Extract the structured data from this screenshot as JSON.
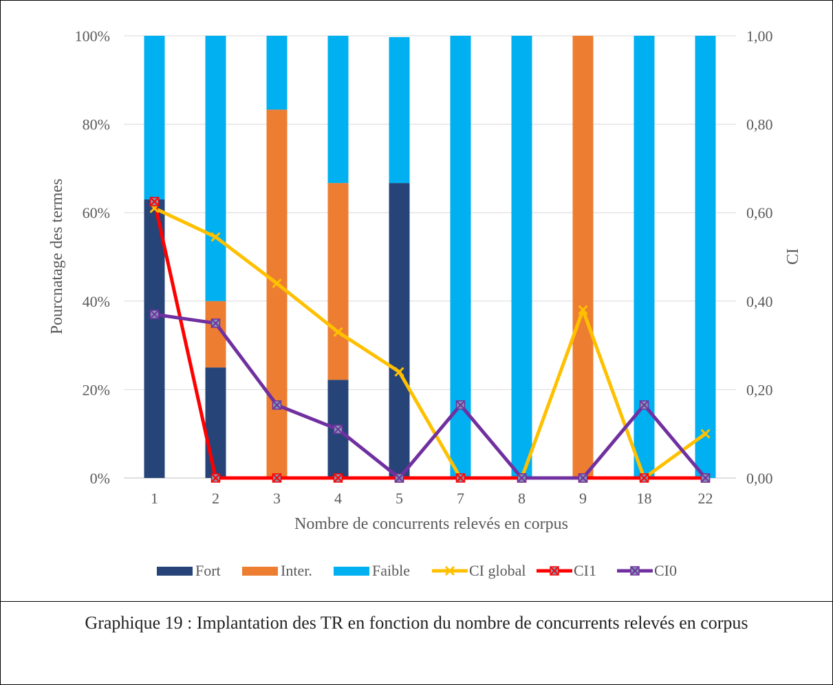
{
  "caption": "Graphique 19 : Implantation des TR en fonction du nombre de concurrents relevés en corpus",
  "chart_data": {
    "type": "bar",
    "stacked": true,
    "categories": [
      "1",
      "2",
      "3",
      "4",
      "5",
      "7",
      "8",
      "9",
      "18",
      "22"
    ],
    "xlabel": "Nombre de concurrents relevés en corpus",
    "ylabel": "Pourcnatage des termes",
    "y2label": "CI",
    "ylim": [
      0,
      100
    ],
    "y2lim": [
      0,
      1
    ],
    "yticks": [
      "0%",
      "20%",
      "40%",
      "60%",
      "80%",
      "100%"
    ],
    "y2ticks": [
      "0,00",
      "0,20",
      "0,40",
      "0,60",
      "0,80",
      "1,00"
    ],
    "grid": true,
    "legend_position": "bottom",
    "series": [
      {
        "name": "Fort",
        "type": "bar",
        "color": "#264478",
        "values": [
          63,
          25,
          0,
          22.2,
          66.7,
          0,
          0,
          0,
          0,
          0
        ]
      },
      {
        "name": "Inter.",
        "type": "bar",
        "color": "#ED7D31",
        "values": [
          0,
          15,
          83.3,
          44.5,
          0,
          0,
          0,
          100,
          0,
          0
        ]
      },
      {
        "name": "Faible",
        "type": "bar",
        "color": "#00B0F0",
        "values": [
          37,
          60,
          16.7,
          33.3,
          33.0,
          100,
          100,
          0,
          100,
          100
        ]
      },
      {
        "name": "CI global",
        "type": "line",
        "axis": "secondary",
        "color": "#FFC000",
        "marker": "x",
        "values": [
          0.61,
          0.545,
          0.44,
          0.33,
          0.24,
          0,
          0,
          0.38,
          0,
          0.1
        ]
      },
      {
        "name": "CI1",
        "type": "line",
        "axis": "secondary",
        "color": "#FF0000",
        "marker": "x-square",
        "values": [
          0.625,
          0,
          0,
          0,
          0,
          0,
          0,
          0,
          0,
          0
        ]
      },
      {
        "name": "CI0",
        "type": "line",
        "axis": "secondary",
        "color": "#7030A0",
        "marker": "x-square",
        "values": [
          0.37,
          0.35,
          0.165,
          0.11,
          0,
          0.165,
          0,
          0,
          0.165,
          0
        ]
      }
    ]
  }
}
